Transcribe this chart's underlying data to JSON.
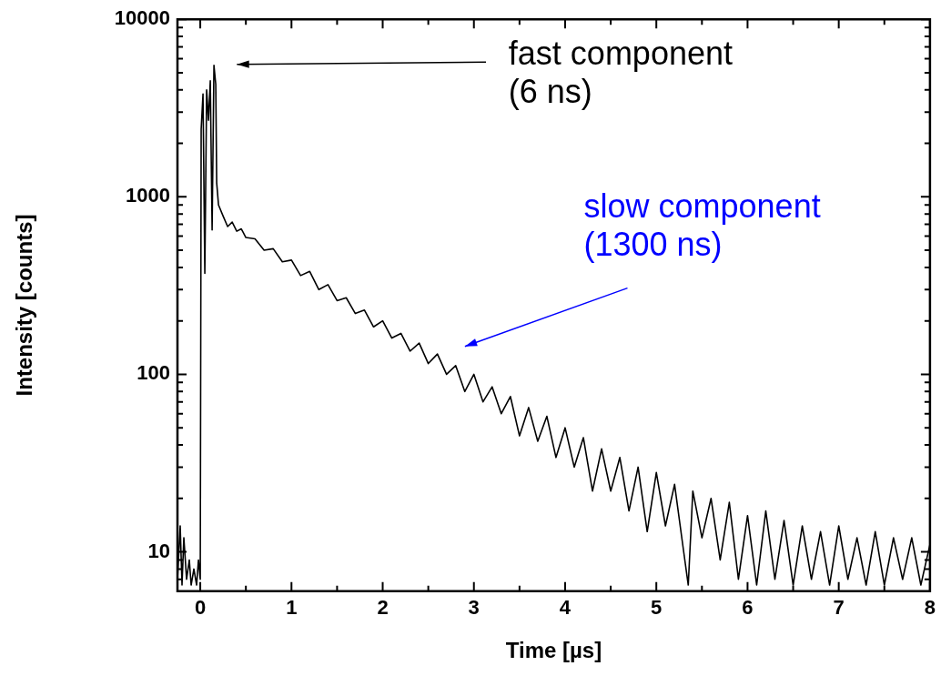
{
  "chart_data": {
    "type": "line",
    "xlabel": "Time [µs]",
    "ylabel": "Intensity [counts]",
    "log": "y",
    "grid": false,
    "legend": false,
    "marker": "none",
    "line_style": "solid",
    "xlim": [
      -0.25,
      8
    ],
    "ylim": [
      6,
      10000
    ],
    "xticks": [
      0,
      {
        "value": 0.5,
        "label": null
      },
      1,
      {
        "value": 1.5,
        "label": null
      },
      2,
      {
        "value": 2.5,
        "label": null
      },
      3,
      {
        "value": 3.5,
        "label": null
      },
      4,
      {
        "value": 4.5,
        "label": null
      },
      5,
      {
        "value": 5.5,
        "label": null
      },
      6,
      {
        "value": 6.5,
        "label": null
      },
      7,
      {
        "value": 7.5,
        "label": null
      },
      8
    ],
    "yticks": [
      {
        "value": 7,
        "label": null
      },
      {
        "value": 8,
        "label": null
      },
      {
        "value": 9,
        "label": null
      },
      10,
      {
        "value": 20,
        "label": null
      },
      {
        "value": 30,
        "label": null
      },
      {
        "value": 40,
        "label": null
      },
      {
        "value": 50,
        "label": null
      },
      {
        "value": 60,
        "label": null
      },
      {
        "value": 70,
        "label": null
      },
      {
        "value": 80,
        "label": null
      },
      {
        "value": 90,
        "label": null
      },
      100,
      {
        "value": 200,
        "label": null
      },
      {
        "value": 300,
        "label": null
      },
      {
        "value": 400,
        "label": null
      },
      {
        "value": 500,
        "label": null
      },
      {
        "value": 600,
        "label": null
      },
      {
        "value": 700,
        "label": null
      },
      {
        "value": 800,
        "label": null
      },
      {
        "value": 900,
        "label": null
      },
      1000,
      {
        "value": 2000,
        "label": null
      },
      {
        "value": 3000,
        "label": null
      },
      {
        "value": 4000,
        "label": null
      },
      {
        "value": 5000,
        "label": null
      },
      {
        "value": 6000,
        "label": null
      },
      {
        "value": 7000,
        "label": null
      },
      {
        "value": 8000,
        "label": null
      },
      {
        "value": 9000,
        "label": null
      },
      10000
    ],
    "annotations": [
      "fast component\n(6 ns)",
      "slow component\n(1300 ns)"
    ],
    "series": [
      {
        "color": "#000000",
        "x": [
          -0.25,
          -0.22,
          -0.2,
          -0.18,
          -0.15,
          -0.12,
          -0.1,
          -0.07,
          -0.04,
          -0.02,
          0.0,
          0.01,
          0.03,
          0.05,
          0.07,
          0.09,
          0.11,
          0.13,
          0.15,
          0.17,
          0.18,
          0.2,
          0.25,
          0.3,
          0.35,
          0.4,
          0.45,
          0.5,
          0.6,
          0.7,
          0.8,
          0.9,
          1.0,
          1.1,
          1.2,
          1.3,
          1.4,
          1.5,
          1.6,
          1.7,
          1.8,
          1.9,
          2.0,
          2.1,
          2.2,
          2.3,
          2.4,
          2.5,
          2.6,
          2.7,
          2.8,
          2.9,
          3.0,
          3.1,
          3.2,
          3.3,
          3.4,
          3.5,
          3.6,
          3.7,
          3.8,
          3.9,
          4.0,
          4.1,
          4.2,
          4.3,
          4.4,
          4.5,
          4.6,
          4.7,
          4.8,
          4.9,
          5.0,
          5.1,
          5.2,
          5.3,
          5.35,
          5.4,
          5.5,
          5.6,
          5.7,
          5.8,
          5.9,
          6.0,
          6.1,
          6.2,
          6.3,
          6.4,
          6.5,
          6.6,
          6.7,
          6.8,
          6.9,
          7.0,
          7.1,
          7.2,
          7.3,
          7.4,
          7.5,
          7.6,
          7.7,
          7.8,
          7.9,
          8.0
        ],
        "values": [
          7,
          14,
          6.5,
          12,
          7,
          9,
          6.5,
          8,
          6.5,
          9,
          7,
          2400,
          3800,
          370,
          4000,
          2700,
          4500,
          650,
          5500,
          4300,
          1200,
          900,
          780,
          680,
          720,
          640,
          660,
          590,
          580,
          500,
          510,
          430,
          440,
          360,
          380,
          300,
          320,
          260,
          270,
          220,
          230,
          185,
          200,
          160,
          170,
          135,
          150,
          115,
          130,
          100,
          112,
          80,
          100,
          70,
          85,
          60,
          75,
          45,
          65,
          42,
          58,
          34,
          50,
          30,
          44,
          22,
          38,
          22,
          34,
          17,
          30,
          13,
          28,
          14,
          24,
          10,
          6.5,
          22,
          12,
          20,
          9,
          19,
          7,
          16,
          6.5,
          17,
          7,
          15,
          6.5,
          14,
          7,
          13,
          6.5,
          14,
          7,
          12,
          6.5,
          13,
          6.5,
          12,
          7,
          12,
          6.5,
          11
        ]
      }
    ]
  }
}
